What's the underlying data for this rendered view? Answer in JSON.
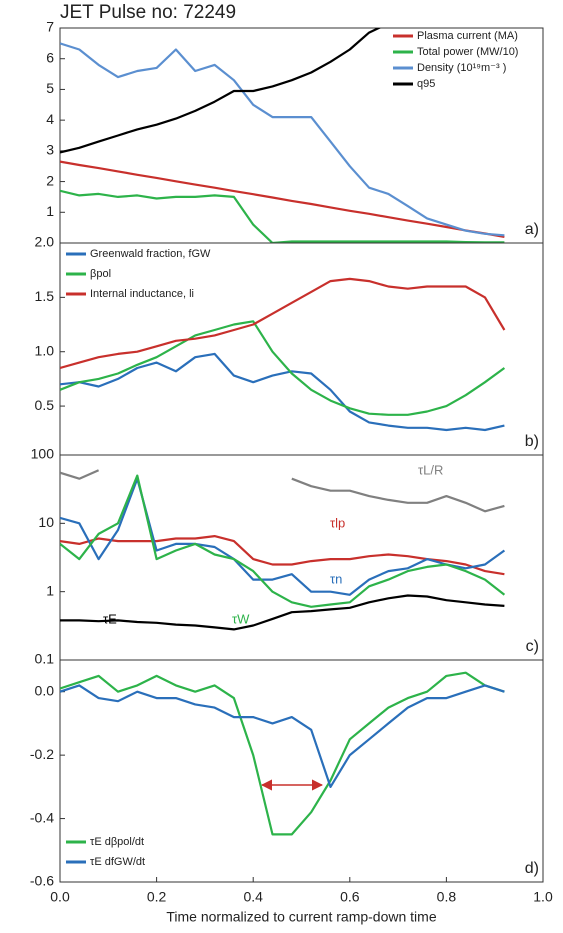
{
  "chart_data": [
    {
      "type": "line",
      "title": "JET Pulse no: 72249",
      "annotation": "a)",
      "x": [
        0,
        0.04,
        0.08,
        0.12,
        0.16,
        0.2,
        0.24,
        0.28,
        0.32,
        0.36,
        0.4,
        0.44,
        0.48,
        0.52,
        0.56,
        0.6,
        0.64,
        0.68,
        0.72,
        0.76,
        0.8,
        0.84,
        0.88,
        0.92
      ],
      "xlim": [
        0,
        1
      ],
      "ylim": [
        0,
        7
      ],
      "yticks": [
        1,
        2,
        3,
        4,
        5,
        6,
        7
      ],
      "legend": "upper right",
      "series": [
        {
          "name": "Plasma current (MA)",
          "color": "#c8302c",
          "values": [
            2.65,
            2.54,
            2.44,
            2.33,
            2.22,
            2.12,
            2.01,
            1.9,
            1.8,
            1.69,
            1.59,
            1.48,
            1.37,
            1.27,
            1.16,
            1.05,
            0.95,
            0.84,
            0.73,
            0.63,
            0.52,
            0.41,
            0.31,
            0.2
          ]
        },
        {
          "name": "Total power (MW/10)",
          "color": "#2db34a",
          "values": [
            1.7,
            1.55,
            1.6,
            1.5,
            1.55,
            1.45,
            1.5,
            1.5,
            1.55,
            1.5,
            0.6,
            0,
            0.05,
            0.05,
            0.05,
            0.05,
            0.05,
            0.05,
            0.05,
            0.05,
            0.05,
            0.03,
            0.02,
            0.02
          ]
        },
        {
          "name": "Density (10¹⁹m⁻³ )",
          "color": "#5b8fd0",
          "values": [
            6.5,
            6.3,
            5.8,
            5.4,
            5.6,
            5.7,
            6.3,
            5.6,
            5.8,
            5.3,
            4.5,
            4.1,
            4.1,
            4.1,
            3.3,
            2.5,
            1.8,
            1.6,
            1.2,
            0.8,
            0.6,
            0.4,
            0.3,
            0.25
          ]
        },
        {
          "name": "q95",
          "color": "#000000",
          "values": [
            2.95,
            3.1,
            3.3,
            3.5,
            3.7,
            3.85,
            4.05,
            4.3,
            4.6,
            4.95,
            4.95,
            5.1,
            5.3,
            5.55,
            5.9,
            6.3,
            6.85,
            7.15,
            null,
            null,
            null,
            null,
            null,
            null
          ]
        }
      ]
    },
    {
      "type": "line",
      "annotation": "b)",
      "x": [
        0,
        0.04,
        0.08,
        0.12,
        0.16,
        0.2,
        0.24,
        0.28,
        0.32,
        0.36,
        0.4,
        0.44,
        0.48,
        0.52,
        0.56,
        0.6,
        0.64,
        0.68,
        0.72,
        0.76,
        0.8,
        0.84,
        0.88,
        0.92
      ],
      "xlim": [
        0,
        1
      ],
      "ylim": [
        0.05,
        2.0
      ],
      "yticks": [
        {
          "value": 2.0,
          "label": "2.0"
        },
        1.5,
        {
          "value": 1.0,
          "label": "1.0"
        },
        0.5
      ],
      "legend": "upper left",
      "series": [
        {
          "name": "Greenwald fraction, fGW",
          "color": "#2a6fba",
          "values": [
            0.7,
            0.72,
            0.68,
            0.75,
            0.85,
            0.9,
            0.82,
            0.95,
            0.98,
            0.78,
            0.72,
            0.78,
            0.82,
            0.8,
            0.65,
            0.45,
            0.35,
            0.32,
            0.3,
            0.3,
            0.28,
            0.3,
            0.28,
            0.32
          ]
        },
        {
          "name": "βpol",
          "color": "#2db34a",
          "values": [
            0.65,
            0.72,
            0.75,
            0.8,
            0.88,
            0.95,
            1.05,
            1.15,
            1.2,
            1.25,
            1.28,
            1.0,
            0.8,
            0.65,
            0.55,
            0.48,
            0.43,
            0.42,
            0.42,
            0.45,
            0.5,
            0.6,
            0.72,
            0.85
          ]
        },
        {
          "name": "Internal inductance, li",
          "color": "#c8302c",
          "values": [
            0.85,
            0.9,
            0.95,
            0.98,
            1.0,
            1.05,
            1.1,
            1.12,
            1.15,
            1.2,
            1.25,
            1.35,
            1.45,
            1.55,
            1.65,
            1.67,
            1.65,
            1.6,
            1.58,
            1.6,
            1.6,
            1.6,
            1.5,
            1.2
          ]
        }
      ]
    },
    {
      "type": "line",
      "annotation": "c)",
      "log_scale": true,
      "x": [
        0,
        0.04,
        0.08,
        0.12,
        0.16,
        0.2,
        0.24,
        0.28,
        0.32,
        0.36,
        0.4,
        0.44,
        0.48,
        0.52,
        0.56,
        0.6,
        0.64,
        0.68,
        0.72,
        0.76,
        0.8,
        0.84,
        0.88,
        0.92
      ],
      "xlim": [
        0,
        1
      ],
      "ylim": [
        0.1,
        100
      ],
      "yticks": [
        1,
        10,
        100
      ],
      "series": [
        {
          "name": "τL/R",
          "color": "#808080",
          "values": [
            55,
            45,
            60,
            null,
            70,
            null,
            null,
            null,
            null,
            null,
            60,
            null,
            45,
            35,
            30,
            30,
            25,
            22,
            20,
            20,
            25,
            20,
            15,
            18
          ]
        },
        {
          "name": "τlp",
          "color": "#c8302c",
          "values": [
            5.5,
            5,
            6,
            5.5,
            5.5,
            5.5,
            6,
            6,
            6.5,
            5.5,
            3,
            2.5,
            2.5,
            2.8,
            3,
            3,
            3.3,
            3.5,
            3.3,
            3,
            2.8,
            2.5,
            2,
            1.8
          ]
        },
        {
          "name": "τn",
          "color": "#2a6fba",
          "values": [
            12,
            10,
            3,
            8,
            45,
            4,
            5,
            5,
            4.5,
            3,
            1.5,
            1.5,
            1.8,
            1,
            1,
            0.9,
            1.5,
            2,
            2.2,
            3,
            2.5,
            2.2,
            2.5,
            4
          ]
        },
        {
          "name": "τW",
          "color": "#2db34a",
          "values": [
            5,
            3,
            7,
            10,
            50,
            3,
            4,
            5,
            3.5,
            3,
            2,
            1,
            0.7,
            0.6,
            0.65,
            0.7,
            1.2,
            1.5,
            2,
            2.3,
            2.5,
            2,
            1.5,
            0.9
          ]
        },
        {
          "name": "τE",
          "color": "#000000",
          "values": [
            0.38,
            0.38,
            0.37,
            0.38,
            0.36,
            0.35,
            0.33,
            0.32,
            0.3,
            0.28,
            0.32,
            0.4,
            0.5,
            0.52,
            0.55,
            0.58,
            0.7,
            0.8,
            0.88,
            0.85,
            0.75,
            0.7,
            0.65,
            0.62
          ]
        }
      ]
    },
    {
      "type": "line",
      "annotation": "d)",
      "x_label": "Time normalized to current ramp-down time",
      "x": [
        0,
        0.04,
        0.08,
        0.12,
        0.16,
        0.2,
        0.24,
        0.28,
        0.32,
        0.36,
        0.4,
        0.44,
        0.48,
        0.52,
        0.56,
        0.6,
        0.64,
        0.68,
        0.72,
        0.76,
        0.8,
        0.84,
        0.88,
        0.92
      ],
      "xlim": [
        0,
        1
      ],
      "xticks": [
        {
          "value": 0,
          "label": "0.0"
        },
        0.2,
        0.4,
        0.6,
        0.8,
        {
          "value": 1,
          "label": "1.0"
        }
      ],
      "ylim": [
        -0.6,
        0.1
      ],
      "yticks": [
        0.1,
        {
          "value": 0,
          "label": "0.0"
        },
        -0.2,
        -0.4,
        -0.6
      ],
      "legend": "lower left",
      "series": [
        {
          "name": "τE dβpol/dt",
          "color": "#2db34a",
          "values": [
            0.01,
            0.03,
            0.05,
            0.0,
            0.02,
            0.05,
            0.02,
            0.0,
            0.02,
            -0.02,
            -0.2,
            -0.45,
            -0.45,
            -0.38,
            -0.28,
            -0.15,
            -0.1,
            -0.05,
            -0.02,
            0.0,
            0.05,
            0.06,
            0.02,
            0.0
          ]
        },
        {
          "name": "τE dfGW/dt",
          "color": "#2a6fba",
          "values": [
            0.0,
            0.02,
            -0.02,
            -0.03,
            0.0,
            -0.02,
            -0.02,
            -0.04,
            -0.05,
            -0.08,
            -0.08,
            -0.1,
            -0.08,
            -0.12,
            -0.3,
            -0.2,
            -0.15,
            -0.1,
            -0.05,
            -0.02,
            -0.02,
            0.0,
            0.02,
            0.0
          ]
        }
      ]
    }
  ]
}
